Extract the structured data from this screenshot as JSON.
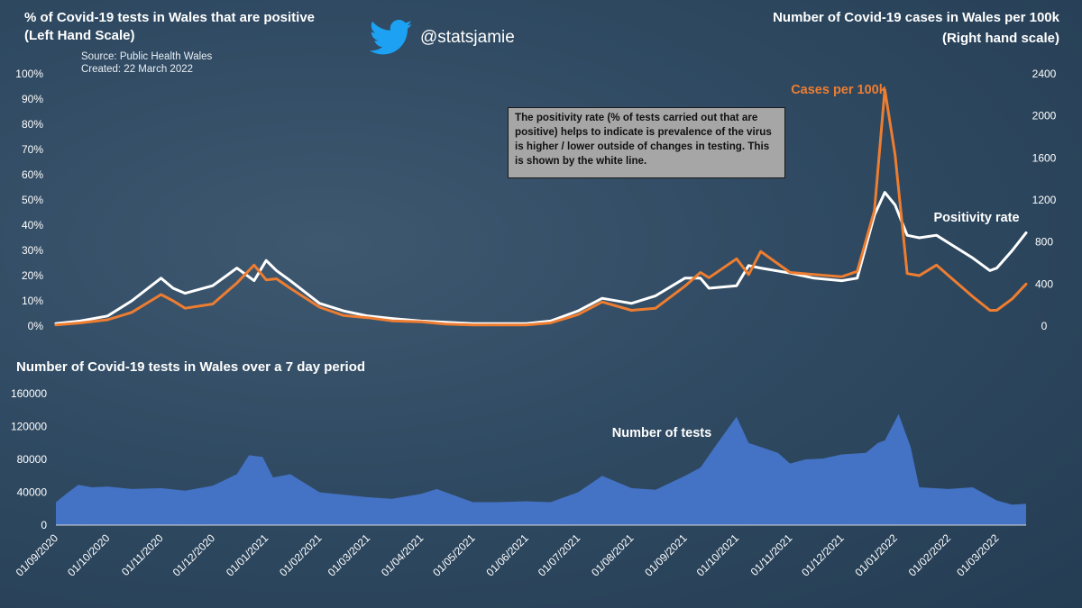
{
  "header": {
    "left_title_line1": "% of Covid-19 tests in Wales that are positive",
    "left_title_line2": "(Left Hand Scale)",
    "source": "Source: Public Health Wales",
    "created": "Created: 22 March 2022",
    "handle": "@statsjamie",
    "right_title_line1": "Number of Covid-19 cases in Wales per 100k",
    "right_title_line2": "(Right hand scale)",
    "bottom_title": "Number of Covid-19 tests in Wales over a 7 day period",
    "note": "The positivity rate (% of tests carried out that are positive) helps to indicate is prevalence of the virus is higher / lower outside of changes in testing. This is shown by the white line."
  },
  "colors": {
    "background": "#2f4a62",
    "cases": "#ed7d31",
    "positivity": "#ffffff",
    "tests": "#4472c4",
    "note_box": "#a6a6a6"
  },
  "chart_data": [
    {
      "type": "line",
      "title": "% of Covid-19 tests in Wales that are positive / Number of Covid-19 cases in Wales per 100k",
      "x": [
        "01/09/2020",
        "15/09/2020",
        "01/10/2020",
        "15/10/2020",
        "01/11/2020",
        "08/11/2020",
        "15/11/2020",
        "01/12/2020",
        "15/12/2020",
        "25/12/2020",
        "01/01/2021",
        "07/01/2021",
        "15/01/2021",
        "01/02/2021",
        "15/02/2021",
        "01/03/2021",
        "15/03/2021",
        "01/04/2021",
        "15/04/2021",
        "01/05/2021",
        "15/05/2021",
        "01/06/2021",
        "15/06/2021",
        "01/07/2021",
        "15/07/2021",
        "01/08/2021",
        "15/08/2021",
        "01/09/2021",
        "10/09/2021",
        "15/09/2021",
        "01/10/2021",
        "08/10/2021",
        "15/10/2021",
        "01/11/2021",
        "15/11/2021",
        "01/12/2021",
        "10/12/2021",
        "20/12/2021",
        "26/12/2021",
        "01/01/2022",
        "08/01/2022",
        "15/01/2022",
        "25/01/2022",
        "01/02/2022",
        "15/02/2022",
        "25/02/2022",
        "01/03/2022",
        "10/03/2022",
        "18/03/2022"
      ],
      "series": [
        {
          "name": "Positivity rate",
          "axis": "left",
          "unit": "%",
          "values": [
            1,
            2,
            4,
            10,
            19,
            15,
            13,
            16,
            23,
            18,
            26,
            22,
            18,
            9,
            6,
            4,
            3,
            2,
            1.5,
            1,
            1,
            1,
            2,
            6,
            11,
            9,
            12,
            19,
            19,
            15,
            16,
            24,
            23,
            21,
            19,
            18,
            19,
            44,
            53,
            48,
            36,
            35,
            36,
            33,
            27,
            22,
            23,
            30,
            37
          ]
        },
        {
          "name": "Cases per 100k",
          "axis": "right",
          "unit": "cases per 100k",
          "values": [
            10,
            30,
            60,
            130,
            300,
            240,
            170,
            210,
            410,
            580,
            440,
            450,
            360,
            180,
            100,
            80,
            50,
            40,
            20,
            10,
            10,
            10,
            30,
            110,
            230,
            150,
            170,
            380,
            510,
            460,
            640,
            490,
            710,
            510,
            490,
            470,
            520,
            1100,
            2250,
            1630,
            500,
            480,
            580,
            480,
            280,
            150,
            150,
            260,
            400
          ]
        }
      ],
      "left_axis": {
        "ylim": [
          0,
          100
        ],
        "ticks": [
          "0%",
          "10%",
          "20%",
          "30%",
          "40%",
          "50%",
          "60%",
          "70%",
          "80%",
          "90%",
          "100%"
        ]
      },
      "right_axis": {
        "ylim": [
          0,
          2400
        ],
        "ticks": [
          "0",
          "400",
          "800",
          "1200",
          "1600",
          "2000",
          "2400"
        ]
      },
      "annotations": [
        "Cases per 100k",
        "Positivity rate"
      ]
    },
    {
      "type": "area",
      "title": "Number of Covid-19 tests in Wales over a 7 day period",
      "x": [
        "01/09/2020",
        "07/09/2020",
        "14/09/2020",
        "22/09/2020",
        "01/10/2020",
        "15/10/2020",
        "01/11/2020",
        "15/11/2020",
        "01/12/2020",
        "15/12/2020",
        "22/12/2020",
        "30/12/2020",
        "05/01/2021",
        "15/01/2021",
        "01/02/2021",
        "15/02/2021",
        "01/03/2021",
        "15/03/2021",
        "01/04/2021",
        "10/04/2021",
        "01/05/2021",
        "15/05/2021",
        "01/06/2021",
        "15/06/2021",
        "01/07/2021",
        "15/07/2021",
        "01/08/2021",
        "15/08/2021",
        "01/09/2021",
        "10/09/2021",
        "20/09/2021",
        "01/10/2021",
        "08/10/2021",
        "15/10/2021",
        "25/10/2021",
        "01/11/2021",
        "10/11/2021",
        "20/11/2021",
        "01/12/2021",
        "15/12/2021",
        "22/12/2021",
        "26/12/2021",
        "03/01/2022",
        "10/01/2022",
        "15/01/2022",
        "01/02/2022",
        "15/02/2022",
        "01/03/2022",
        "10/03/2022",
        "18/03/2022"
      ],
      "values": [
        28000,
        38000,
        49000,
        46000,
        47000,
        44000,
        45000,
        42000,
        48000,
        62000,
        85000,
        83000,
        58000,
        62000,
        40000,
        37000,
        34000,
        32000,
        38000,
        44000,
        28000,
        28000,
        29000,
        28000,
        40000,
        60000,
        45000,
        43000,
        60000,
        70000,
        100000,
        132000,
        100000,
        95000,
        88000,
        75000,
        80000,
        81000,
        86000,
        88000,
        100000,
        103000,
        135000,
        95000,
        46000,
        44000,
        46000,
        30000,
        25000,
        26000
      ],
      "ylim": [
        0,
        160000
      ],
      "yticks": [
        "0",
        "40000",
        "80000",
        "120000",
        "160000"
      ],
      "xticks": [
        "01/09/2020",
        "01/10/2020",
        "01/11/2020",
        "01/12/2020",
        "01/01/2021",
        "01/02/2021",
        "01/03/2021",
        "01/04/2021",
        "01/05/2021",
        "01/06/2021",
        "01/07/2021",
        "01/08/2021",
        "01/09/2021",
        "01/10/2021",
        "01/11/2021",
        "01/12/2021",
        "01/01/2022",
        "01/02/2022",
        "01/03/2022"
      ],
      "annotations": [
        "Number of tests"
      ]
    }
  ]
}
